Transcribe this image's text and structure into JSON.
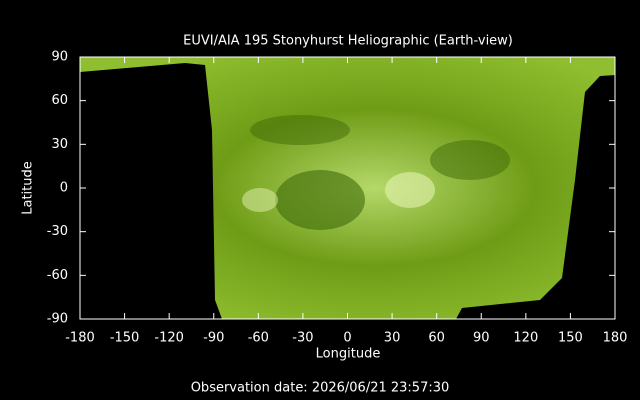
{
  "chart_data": {
    "type": "image",
    "title": "EUVI/AIA 195 Stonyhurst Heliographic (Earth-view)",
    "xlabel": "Longitude",
    "ylabel": "Latitude",
    "xlim": [
      -180,
      180
    ],
    "ylim": [
      -90,
      90
    ],
    "xticks": [
      -180,
      -150,
      -120,
      -90,
      -60,
      -30,
      0,
      30,
      60,
      90,
      120,
      150,
      180
    ],
    "yticks": [
      -90,
      -60,
      -30,
      0,
      30,
      60,
      90
    ],
    "footer": "Observation date: 2026/06/21 23:57:30"
  }
}
